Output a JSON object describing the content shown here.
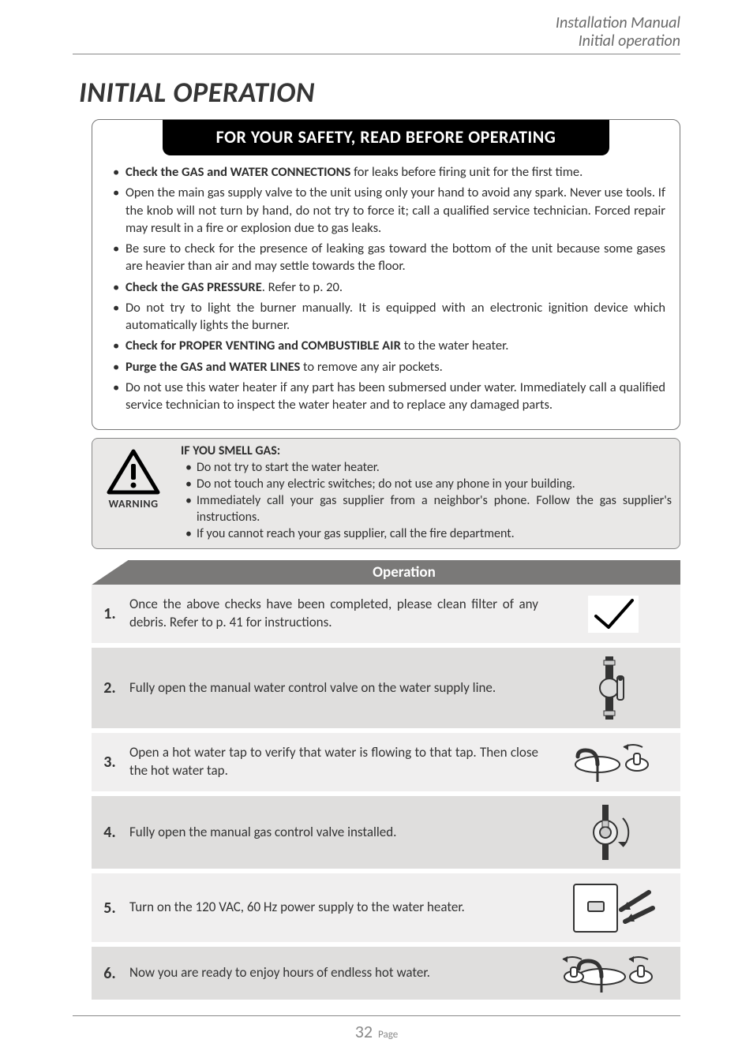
{
  "header": {
    "line1": "Installation Manual",
    "line2": "Initial operation"
  },
  "title": "INITIAL OPERATION",
  "safety": {
    "banner": "FOR YOUR SAFETY, READ BEFORE OPERATING",
    "items": [
      {
        "bold": "Check the GAS and WATER CONNECTIONS",
        "rest": " for leaks before firing unit for the first time."
      },
      {
        "bold": "",
        "rest": "Open the main gas supply valve to the unit using only your hand to avoid any spark.  Never use tools.  If the knob will not turn by hand, do not try to force it; call a qualified service technician.  Forced repair may result in a fire or explosion due to gas leaks."
      },
      {
        "bold": "",
        "rest": "Be sure to check for the presence of leaking gas toward the bottom of the unit because some gases are heavier than air and may settle towards the floor."
      },
      {
        "bold": "Check the GAS PRESSURE",
        "rest": ".  Refer to p. 20."
      },
      {
        "bold": "",
        "rest": "Do not try to light the burner manually.  It is equipped with an electronic ignition device which automatically lights the burner."
      },
      {
        "bold": "Check for PROPER VENTING and COMBUSTIBLE AIR",
        "rest": " to the water heater."
      },
      {
        "bold": "Purge the GAS and WATER LINES",
        "rest": " to remove any air pockets."
      },
      {
        "bold": "",
        "rest": "Do not use this water heater if any part has been submersed under water.  Immediately call a qualified service technician to inspect the water heater and to replace any damaged parts."
      }
    ]
  },
  "warning": {
    "label": "WARNING",
    "title": "IF YOU SMELL GAS:",
    "items": [
      "Do not try to start the water heater.",
      "Do not touch any electric switches; do not use any phone in your building.",
      "Immediately call your gas supplier from a neighbor's phone.  Follow the gas supplier's instructions.",
      "If you cannot reach your gas supplier, call the fire department."
    ]
  },
  "operation": {
    "header": "Operation",
    "steps": [
      {
        "n": "1.",
        "text": "Once the above checks have been completed, please clean filter of any debris.  Refer to p. 41 for instructions.",
        "icon": "check"
      },
      {
        "n": "2.",
        "text": "Fully open the manual water control valve on the water supply line.",
        "icon": "water-valve"
      },
      {
        "n": "3.",
        "text": "Open a hot water tap to verify that water is flowing to that tap.  Then close the hot water tap.",
        "icon": "faucet-open"
      },
      {
        "n": "4.",
        "text": "Fully open the manual gas control valve installed.",
        "icon": "gas-valve"
      },
      {
        "n": "5.",
        "text": "Turn on the 120 VAC, 60 Hz power supply to the water heater.",
        "icon": "power-switch"
      },
      {
        "n": "6.",
        "text": "Now you are ready to enjoy hours of endless hot water.",
        "icon": "faucet-both"
      }
    ]
  },
  "footer": {
    "page_number": "32",
    "page_label": "Page"
  },
  "colors": {
    "text": "#333333",
    "muted": "#6a6a6a",
    "rule": "#888888",
    "banner_bg": "#000000",
    "banner_fg": "#ffffff",
    "warn_bg": "#e9e8e7",
    "table_head_bg": "#7a7978",
    "row_odd": "#f0efef",
    "row_even": "#dfdedd"
  }
}
